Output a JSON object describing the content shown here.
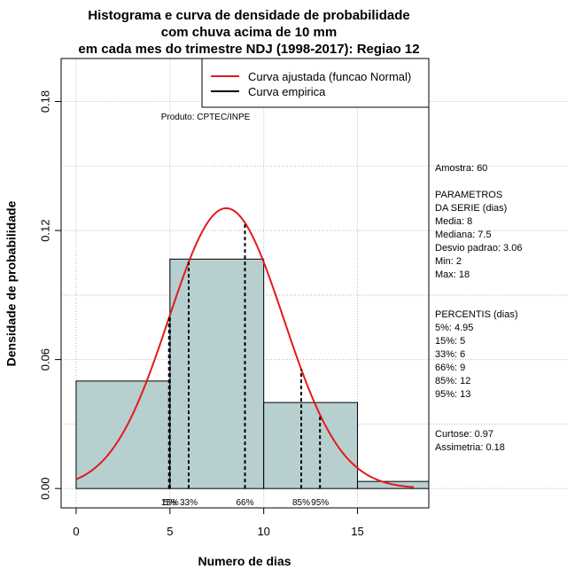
{
  "chart_data": {
    "type": "bar",
    "title": [
      "Histograma e curva de densidade de probabilidade",
      "com chuva acima de 10 mm",
      "em cada mes do trimestre NDJ (1998-2017): Regiao 12"
    ],
    "xlabel": "Numero de dias",
    "ylabel": "Densidade de probabilidade",
    "xlim": [
      -0.8,
      18.8
    ],
    "ylim": [
      -0.009,
      0.2
    ],
    "xticks": [
      0,
      5,
      10,
      15
    ],
    "yticks": [
      0.0,
      0.06,
      0.12,
      0.18
    ],
    "ytick_labels": [
      "0.00",
      "0.06",
      "0.12",
      "0.18"
    ],
    "bins": [
      {
        "from": 0,
        "to": 5,
        "density": 0.05
      },
      {
        "from": 5,
        "to": 10,
        "density": 0.1067
      },
      {
        "from": 10,
        "to": 15,
        "density": 0.04
      },
      {
        "from": 15,
        "to": 20,
        "density": 0.0033
      }
    ],
    "bar_color": "#b8cfcf",
    "fitted_curve": {
      "name": "Curva ajustada (funcao Normal)",
      "distribution": "normal",
      "mean": 8,
      "sd": 3.06,
      "x_range": [
        0,
        18
      ],
      "color": "#e31a1c"
    },
    "empirical_curve": {
      "name": "Curva empirica",
      "color": "#000000"
    },
    "legend_position": "top-right",
    "grid": true,
    "percentile_lines": [
      {
        "x": 4.95,
        "label": "5%"
      },
      {
        "x": 5,
        "label": "15%"
      },
      {
        "x": 6,
        "label": "33%"
      },
      {
        "x": 9,
        "label": "66%"
      },
      {
        "x": 12,
        "label": "85%"
      },
      {
        "x": 13,
        "label": "95%"
      }
    ],
    "percentile_axis_labels": [
      {
        "x": 5,
        "text": "15%"
      },
      {
        "x": 5,
        "text": "5%"
      },
      {
        "x": 6,
        "text": "33%"
      },
      {
        "x": 9,
        "text": "66%"
      },
      {
        "x": 12,
        "text": "85%"
      },
      {
        "x": 13,
        "text": "95%"
      }
    ],
    "annotation": "Produto: CPTEC/INPE"
  },
  "side_panel": {
    "lines": [
      "Amostra: 60",
      "",
      " PARAMETROS",
      "DA SERIE (dias)",
      "   Media: 8",
      "   Mediana: 7.5",
      "   Desvio padrao: 3.06",
      "   Min: 2",
      "   Max: 18",
      "",
      "",
      "PERCENTIS (dias)",
      "   5%: 4.95",
      "   15%: 5",
      "   33%: 6",
      "   66%: 9",
      "   85%: 12",
      "   95%: 13",
      "",
      "",
      "    Curtose: 0.97",
      "Assimetria: 0.18"
    ]
  }
}
